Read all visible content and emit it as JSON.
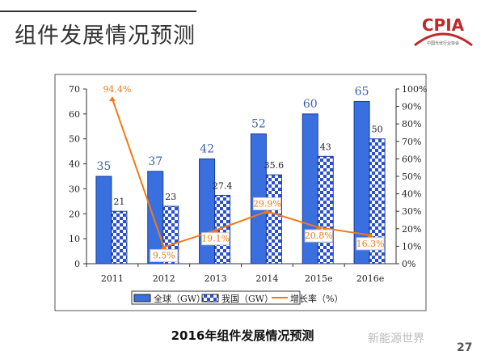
{
  "slide": {
    "title": "组件发展情况预测",
    "caption": "2016年组件发展情况预测",
    "watermark": "新能源世界",
    "page_number": "27",
    "logo_text": "CPIA",
    "logo_subtext": "中国光伏行业协会"
  },
  "chart_data": {
    "type": "bar",
    "categories": [
      "2011",
      "2012",
      "2013",
      "2014",
      "2015e",
      "2016e"
    ],
    "series": [
      {
        "name": "全球（GW）",
        "type": "bar",
        "values": [
          35,
          37,
          42,
          52,
          60,
          65
        ],
        "labels": [
          "35",
          "37",
          "42",
          "52",
          "60",
          "65"
        ],
        "color": "#3a6fe0"
      },
      {
        "name": "我国（GW）",
        "type": "bar",
        "pattern": "checker",
        "values": [
          21,
          23,
          27.4,
          35.6,
          43,
          50
        ],
        "labels": [
          "21",
          "23",
          "27.4",
          "35.6",
          "43",
          "50"
        ],
        "color": "#2a4fd0"
      },
      {
        "name": "增长率（%）",
        "type": "line",
        "axis": "right",
        "values": [
          94.4,
          9.5,
          19.1,
          29.9,
          20.8,
          16.3
        ],
        "labels": [
          "94.4%",
          "9.5%",
          "19.1%",
          "29.9%",
          "20.8%",
          "16.3%"
        ],
        "color": "#f07a1a"
      }
    ],
    "y_left": {
      "range": [
        0,
        70
      ],
      "ticks": [
        "0",
        "10",
        "20",
        "30",
        "40",
        "50",
        "60",
        "70"
      ]
    },
    "y_right": {
      "range": [
        0,
        100
      ],
      "ticks": [
        "0%",
        "10%",
        "20%",
        "30%",
        "40%",
        "50%",
        "60%",
        "70%",
        "80%",
        "90%",
        "100%"
      ]
    },
    "legend": "bottom",
    "grid": false
  }
}
